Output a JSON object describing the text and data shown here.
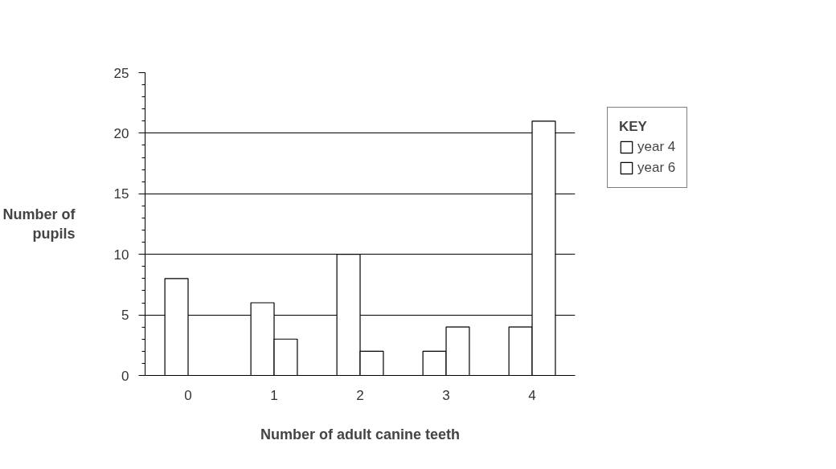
{
  "chart_data": {
    "type": "bar",
    "xlabel": "Number of adult canine teeth",
    "ylabel": "Number of\npupils",
    "legend_title": "KEY",
    "categories": [
      "0",
      "1",
      "2",
      "3",
      "4"
    ],
    "series": [
      {
        "name": "year 4",
        "color": "#ffffff",
        "values": [
          8,
          6,
          10,
          2,
          4
        ]
      },
      {
        "name": "year 6",
        "color": "#ffffff",
        "values": [
          null,
          3,
          2,
          4,
          21
        ]
      }
    ],
    "ylim": [
      0,
      25
    ],
    "yticks": [
      0,
      5,
      10,
      15,
      20,
      25
    ],
    "grid": "y",
    "legend": "right"
  }
}
